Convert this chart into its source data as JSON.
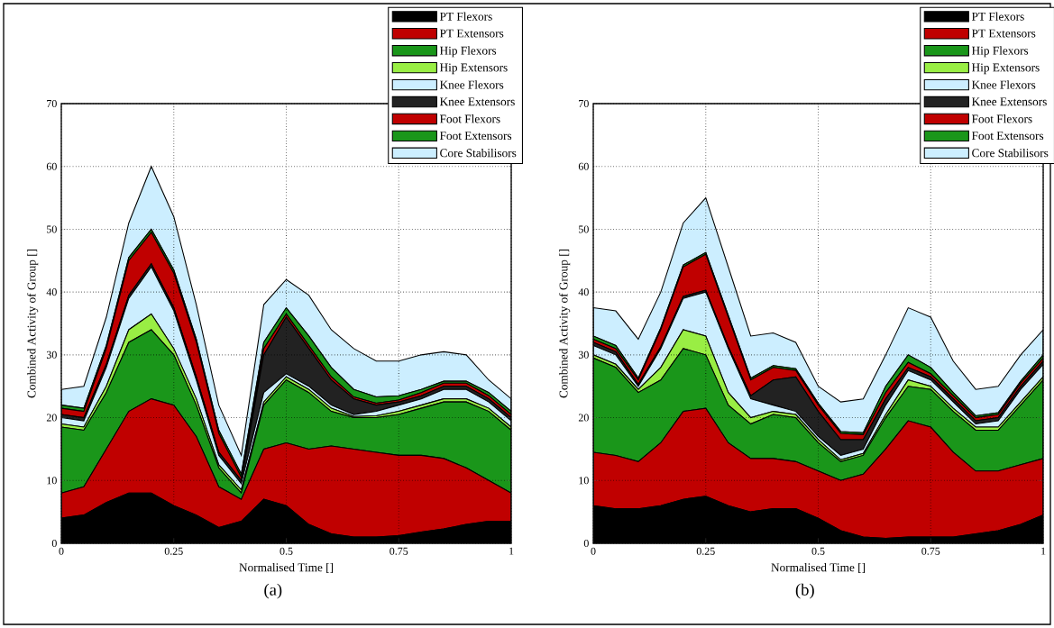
{
  "chart_data": [
    {
      "type": "area",
      "stacked": true,
      "xlabel": "Normalised Time []",
      "ylabel": "Combined Activity of Group []",
      "annotations": [
        "(a)"
      ],
      "x": [
        0,
        0.05,
        0.1,
        0.15,
        0.2,
        0.25,
        0.3,
        0.35,
        0.4,
        0.45,
        0.5,
        0.55,
        0.6,
        0.65,
        0.7,
        0.75,
        0.8,
        0.85,
        0.9,
        0.95,
        1
      ],
      "xlim": [
        0,
        1
      ],
      "ylim": [
        0,
        70
      ],
      "xticks": [
        0,
        0.25,
        0.5,
        0.75,
        1
      ],
      "yticks": [
        0,
        10,
        20,
        30,
        40,
        50,
        60,
        70
      ],
      "grid": true,
      "legend": "top right",
      "series": [
        {
          "name": "PT Flexors",
          "color": "#000000",
          "values": [
            4,
            4.5,
            6.5,
            8,
            8,
            6,
            4.5,
            2.5,
            3.5,
            7,
            6,
            3,
            1.5,
            1,
            1,
            1.2,
            1.8,
            2.3,
            3,
            3.5,
            3.5
          ]
        },
        {
          "name": "PT Extensors",
          "color": "#c00000",
          "values": [
            4,
            4.5,
            8.5,
            13,
            15,
            16,
            12.5,
            6.5,
            3.5,
            8,
            10,
            12,
            14,
            14,
            13.5,
            12.8,
            12.2,
            11.2,
            9,
            6.5,
            4.5
          ]
        },
        {
          "name": "Hip Flexors",
          "color": "#1a961a",
          "values": [
            10.5,
            9,
            9,
            11,
            11,
            8,
            5,
            3,
            1,
            7,
            10,
            9,
            5.5,
            5,
            5.5,
            6.5,
            7.5,
            9,
            10.5,
            11,
            10
          ]
        },
        {
          "name": "Hip Extensors",
          "color": "#99ee44",
          "values": [
            0.5,
            0.5,
            1,
            2,
            2.5,
            1,
            1,
            0.5,
            0.5,
            0.5,
            0.5,
            0.5,
            0.5,
            0.2,
            0.3,
            0.5,
            0.5,
            0.5,
            0.5,
            0.5,
            0.5
          ]
        },
        {
          "name": "Knee Flexors",
          "color": "#cceeff",
          "values": [
            1,
            1,
            3,
            5,
            7.5,
            6,
            3,
            1.5,
            1,
            1.5,
            0.5,
            0.5,
            0.5,
            0.3,
            0.7,
            1,
            1,
            1.5,
            1.5,
            1,
            1
          ]
        },
        {
          "name": "Knee Extensors",
          "color": "#222222",
          "values": [
            0.5,
            0.5,
            0.5,
            0.5,
            0.5,
            0.5,
            0.5,
            0.5,
            0.5,
            6,
            9,
            6,
            4,
            2.5,
            1,
            0.5,
            0.5,
            0.5,
            0.5,
            0.5,
            0.5
          ]
        },
        {
          "name": "Foot Flexors",
          "color": "#c00000",
          "values": [
            1,
            1,
            2.5,
            5.5,
            5,
            5.5,
            5.5,
            3,
            0.5,
            1,
            0.5,
            0.5,
            0.5,
            0.3,
            0.3,
            0.3,
            0.5,
            0.5,
            0.5,
            0.5,
            0.5
          ]
        },
        {
          "name": "Foot Extensors",
          "color": "#1a961a",
          "values": [
            0.5,
            0.5,
            0.5,
            0.5,
            0.5,
            0.5,
            0.5,
            0.5,
            0.5,
            1,
            1,
            1.5,
            1.5,
            1.2,
            1,
            0.7,
            0.5,
            0.3,
            0.3,
            0.5,
            0.5
          ]
        },
        {
          "name": "Core Stabilisors",
          "color": "#cceeff",
          "values": [
            2.5,
            3.5,
            4.5,
            5.5,
            10,
            8.5,
            5.5,
            4,
            3,
            6,
            4.5,
            6.5,
            6,
            6.5,
            5.7,
            5.5,
            5.5,
            4.7,
            4.2,
            2,
            2
          ]
        }
      ]
    },
    {
      "type": "area",
      "stacked": true,
      "xlabel": "Normalised Time []",
      "ylabel": "Combined Activity of Group []",
      "annotations": [
        "(b)"
      ],
      "x": [
        0,
        0.05,
        0.1,
        0.15,
        0.2,
        0.25,
        0.3,
        0.35,
        0.4,
        0.45,
        0.5,
        0.55,
        0.6,
        0.65,
        0.7,
        0.75,
        0.8,
        0.85,
        0.9,
        0.95,
        1
      ],
      "xlim": [
        0,
        1
      ],
      "ylim": [
        0,
        70
      ],
      "xticks": [
        0,
        0.25,
        0.5,
        0.75,
        1
      ],
      "yticks": [
        0,
        10,
        20,
        30,
        40,
        50,
        60,
        70
      ],
      "grid": true,
      "legend": "top right",
      "series": [
        {
          "name": "PT Flexors",
          "color": "#000000",
          "values": [
            6,
            5.5,
            5.5,
            6,
            7,
            7.5,
            6,
            5,
            5.5,
            5.5,
            4,
            2,
            1,
            0.8,
            1,
            1,
            1,
            1.5,
            2,
            3,
            4.5
          ]
        },
        {
          "name": "PT Extensors",
          "color": "#c00000",
          "values": [
            8.5,
            8.5,
            7.5,
            10,
            14,
            14,
            10,
            8.5,
            8,
            7.5,
            7.5,
            8,
            10,
            14.2,
            18.5,
            17.5,
            13.5,
            10,
            9.5,
            9.5,
            9
          ]
        },
        {
          "name": "Hip Flexors",
          "color": "#1a961a",
          "values": [
            15,
            14,
            11,
            10,
            10,
            8.5,
            6,
            5.5,
            7,
            7,
            4.5,
            3,
            3,
            5,
            5.5,
            6,
            6.5,
            6.5,
            6.5,
            9.5,
            12.5
          ]
        },
        {
          "name": "Hip Extensors",
          "color": "#99ee44",
          "values": [
            0.5,
            0.5,
            0.5,
            2,
            3,
            3,
            2,
            1,
            0.5,
            0.5,
            0.5,
            0.3,
            0.3,
            0.5,
            1,
            0.5,
            0.5,
            0.5,
            0.5,
            0.5,
            0.5
          ]
        },
        {
          "name": "Knee Flexors",
          "color": "#cceeff",
          "values": [
            1.5,
            1.5,
            0.5,
            3,
            5,
            7,
            7,
            3,
            1,
            0.5,
            0.5,
            0.7,
            0.7,
            1.5,
            1.5,
            1,
            1,
            0.5,
            1,
            2,
            2
          ]
        },
        {
          "name": "Knee Extensors",
          "color": "#222222",
          "values": [
            0.5,
            0.5,
            0.3,
            0.3,
            0.3,
            0.3,
            0.3,
            0.5,
            4,
            5.5,
            4,
            2.5,
            1.5,
            1,
            0.5,
            0.5,
            0.5,
            0.5,
            0.5,
            0.5,
            0.5
          ]
        },
        {
          "name": "Foot Flexors",
          "color": "#c00000",
          "values": [
            0.5,
            0.5,
            0.7,
            2.7,
            4.7,
            5.7,
            4.7,
            2.5,
            2,
            1,
            1,
            1,
            0.8,
            1,
            0.8,
            0.5,
            0.5,
            0.5,
            0.5,
            0.5,
            0.5
          ]
        },
        {
          "name": "Foot Extensors",
          "color": "#1a961a",
          "values": [
            0.5,
            0.5,
            0.3,
            0.3,
            0.3,
            0.3,
            0.3,
            0.3,
            0.3,
            0.3,
            0.3,
            0.3,
            0.3,
            1,
            1.2,
            1,
            0.5,
            0.3,
            0.3,
            0.3,
            0.5
          ]
        },
        {
          "name": "Core Stabilisors",
          "color": "#cceeff",
          "values": [
            4.5,
            5.5,
            6.2,
            5.7,
            6.7,
            8.7,
            7.7,
            6.7,
            5.2,
            4.2,
            2.7,
            4.7,
            5.4,
            5,
            7.5,
            8,
            5,
            4.2,
            4.2,
            4.2,
            4
          ]
        }
      ]
    }
  ]
}
